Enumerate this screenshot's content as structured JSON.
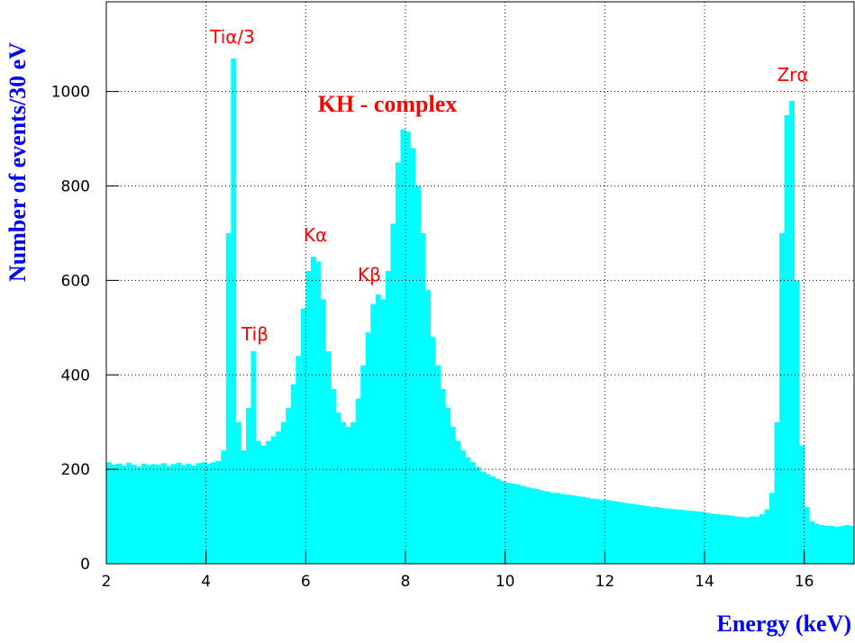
{
  "chart_data": {
    "type": "histogram",
    "title": "KH - complex",
    "x_label": "Energy (keV)",
    "y_label": "Number of events/30 eV",
    "annotations": [
      "Tiα/3",
      "Tiβ",
      "Kα",
      "Kβ",
      "Zrα"
    ],
    "color": "#00ffff",
    "bins": [
      2,
      2.1,
      2.2,
      2.3,
      2.4,
      2.5,
      2.6,
      2.7,
      2.8,
      2.9,
      3,
      3.1,
      3.2,
      3.3,
      3.4,
      3.5,
      3.6,
      3.7,
      3.8,
      3.9,
      4,
      4.1,
      4.2,
      4.3,
      4.4,
      4.5,
      4.6,
      4.7,
      4.8,
      4.9,
      5,
      5.1,
      5.2,
      5.3,
      5.4,
      5.5,
      5.6,
      5.7,
      5.8,
      5.9,
      6,
      6.1,
      6.2,
      6.3,
      6.4,
      6.5,
      6.6,
      6.7,
      6.8,
      6.9,
      7,
      7.1,
      7.2,
      7.3,
      7.4,
      7.5,
      7.6,
      7.7,
      7.8,
      7.9,
      8,
      8.1,
      8.2,
      8.3,
      8.4,
      8.5,
      8.6,
      8.7,
      8.8,
      8.9,
      9,
      9.1,
      9.2,
      9.3,
      9.4,
      9.5,
      9.6,
      9.7,
      9.8,
      9.9,
      10,
      10.1,
      10.2,
      10.3,
      10.4,
      10.5,
      10.6,
      10.7,
      10.8,
      10.9,
      11,
      11.1,
      11.2,
      11.3,
      11.4,
      11.5,
      11.6,
      11.7,
      11.8,
      11.9,
      12,
      12.1,
      12.2,
      12.3,
      12.4,
      12.5,
      12.6,
      12.7,
      12.8,
      12.9,
      13,
      13.1,
      13.2,
      13.3,
      13.4,
      13.5,
      13.6,
      13.7,
      13.8,
      13.9,
      14,
      14.1,
      14.2,
      14.3,
      14.4,
      14.5,
      14.6,
      14.7,
      14.8,
      14.9,
      15,
      15.1,
      15.2,
      15.3,
      15.4,
      15.5,
      15.6,
      15.7,
      15.8,
      15.9,
      16,
      16.1,
      16.2,
      16.3,
      16.4,
      16.5,
      16.6,
      16.7,
      16.8,
      16.9,
      17
    ],
    "values": [
      215,
      210,
      212,
      208,
      214,
      210,
      206,
      212,
      209,
      211,
      210,
      213,
      207,
      211,
      214,
      209,
      212,
      208,
      213,
      215,
      212,
      215,
      218,
      240,
      700,
      1070,
      300,
      240,
      330,
      450,
      260,
      250,
      260,
      270,
      280,
      300,
      330,
      380,
      440,
      540,
      620,
      650,
      640,
      560,
      450,
      370,
      320,
      300,
      290,
      300,
      350,
      420,
      490,
      550,
      570,
      560,
      620,
      720,
      850,
      920,
      915,
      880,
      800,
      700,
      580,
      480,
      420,
      370,
      330,
      290,
      260,
      240,
      225,
      215,
      205,
      195,
      190,
      185,
      180,
      175,
      172,
      170,
      168,
      165,
      162,
      160,
      158,
      155,
      153,
      150,
      150,
      148,
      146,
      145,
      143,
      142,
      140,
      138,
      137,
      135,
      135,
      133,
      132,
      130,
      128,
      127,
      125,
      124,
      122,
      120,
      120,
      118,
      117,
      116,
      115,
      114,
      113,
      112,
      111,
      110,
      108,
      106,
      105,
      104,
      103,
      102,
      100,
      99,
      98,
      100,
      100,
      105,
      115,
      150,
      300,
      700,
      950,
      980,
      600,
      250,
      120,
      90,
      85,
      82,
      80,
      80,
      78,
      80,
      82,
      80
    ],
    "xlim": [
      2,
      17
    ],
    "ylim": [
      0,
      1190
    ],
    "xticks": [
      2,
      4,
      6,
      8,
      10,
      12,
      14,
      16
    ],
    "yticks": [
      0,
      200,
      400,
      600,
      800,
      1000
    ],
    "grid": true
  }
}
